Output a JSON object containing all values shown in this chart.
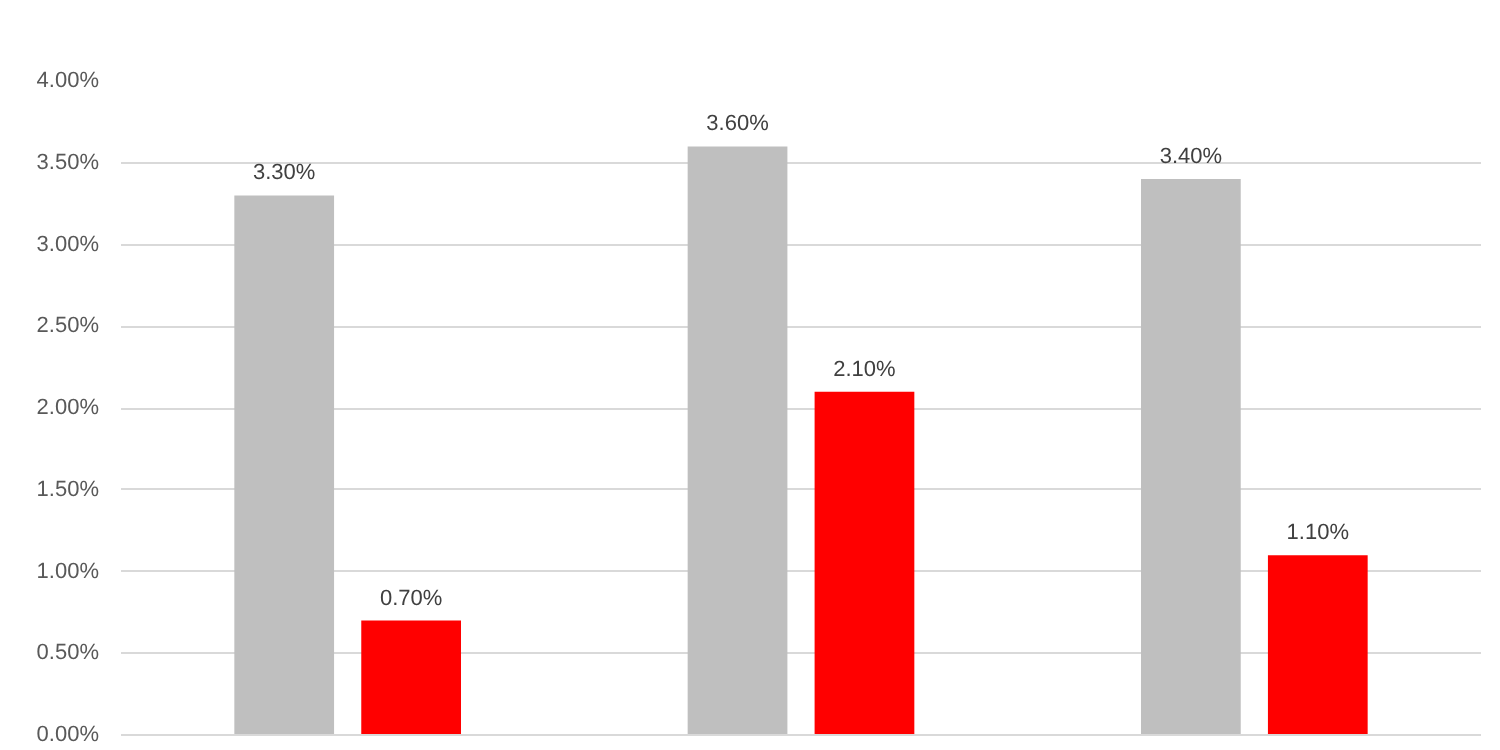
{
  "chart_data": {
    "type": "bar",
    "categories": [
      null,
      null,
      null
    ],
    "series": [
      {
        "color": "#bfbfbf",
        "values": [
          3.3,
          3.6,
          3.4
        ],
        "value_labels": [
          "3.30%",
          "3.60%",
          "3.40%"
        ]
      },
      {
        "color": "#ff0000",
        "values": [
          0.7,
          2.1,
          1.1
        ],
        "value_labels": [
          "0.70%",
          "2.10%",
          "1.10%"
        ]
      }
    ],
    "ylim": [
      0,
      4
    ],
    "yticks": [
      {
        "value": 0,
        "label": "0.00%"
      },
      {
        "value": 0.5,
        "label": "0.50%"
      },
      {
        "value": 1,
        "label": "1.00%"
      },
      {
        "value": 1.5,
        "label": "1.50%"
      },
      {
        "value": 2,
        "label": "2.00%"
      },
      {
        "value": 2.5,
        "label": "2.50%"
      },
      {
        "value": 3,
        "label": "3.00%"
      },
      {
        "value": 3.5,
        "label": "3.50%"
      },
      {
        "value": 4,
        "label": "4.00%"
      }
    ],
    "grid": "y"
  }
}
